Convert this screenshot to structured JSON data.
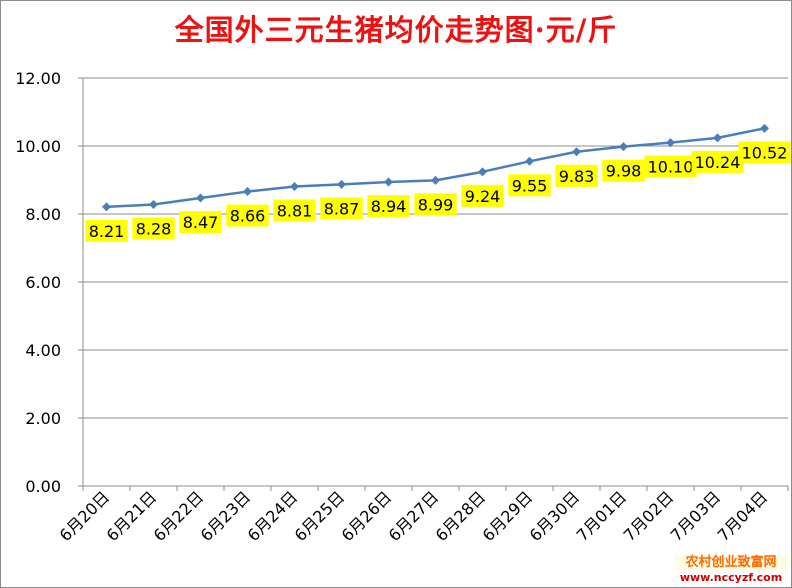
{
  "chart_data": {
    "type": "line",
    "title": "全国外三元生猪均价走势图·元/斤",
    "xlabel": "",
    "ylabel": "",
    "categories": [
      "6月20日",
      "6月21日",
      "6月22日",
      "6月23日",
      "6月24日",
      "6月25日",
      "6月26日",
      "6月27日",
      "6月28日",
      "6月29日",
      "6月30日",
      "7月01日",
      "7月02日",
      "7月03日",
      "7月04日"
    ],
    "series": [
      {
        "values": [
          8.21,
          8.28,
          8.47,
          8.66,
          8.81,
          8.87,
          8.94,
          8.99,
          9.24,
          9.55,
          9.83,
          9.98,
          10.1,
          10.24,
          10.52
        ]
      }
    ],
    "data_labels": [
      "8.21",
      "8.28",
      "8.47",
      "8.66",
      "8.81",
      "8.87",
      "8.94",
      "8.99",
      "9.24",
      "9.55",
      "9.83",
      "9.98",
      "10.10",
      "10.24",
      "10.52"
    ],
    "ylim": [
      0,
      12
    ],
    "yticks": [
      "0.00",
      "2.00",
      "4.00",
      "6.00",
      "8.00",
      "10.00",
      "12.00"
    ],
    "grid": true,
    "legend": "none",
    "colors": {
      "line": "#4a7ebb",
      "marker": "#4a7ebb",
      "label_bg": "#ffff00",
      "title": "#ee1111",
      "grid": "#8c8c8c"
    }
  },
  "watermark": {
    "line1": "农村创业致富网",
    "line2": "www.nccyzf.com"
  }
}
